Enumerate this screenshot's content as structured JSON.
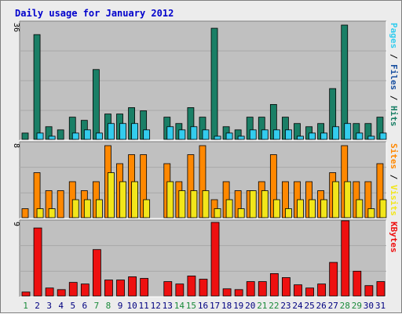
{
  "chart_data": {
    "type": "bar",
    "title": "Daily usage for January 2012",
    "colors": {
      "pages": "#1a7f66",
      "files": "#33ccee",
      "hits": "#1a7f66",
      "visits": "#f2e61a",
      "sites": "#ff8800",
      "kbytes": "#ee1010",
      "weekend_label": "#1a8a3a",
      "weekday_label": "#000080",
      "title": "#0000cc",
      "plot_bg": "#c0c0c0"
    },
    "days": [
      "1",
      "2",
      "3",
      "4",
      "5",
      "6",
      "7",
      "8",
      "9",
      "10",
      "11",
      "12",
      "13",
      "14",
      "15",
      "16",
      "17",
      "18",
      "19",
      "20",
      "21",
      "22",
      "23",
      "24",
      "25",
      "26",
      "27",
      "28",
      "29",
      "30",
      "31"
    ],
    "weekend_days": [
      1,
      7,
      8,
      14,
      15,
      21,
      22,
      28,
      29
    ],
    "panels": [
      {
        "id": "hits-panel",
        "ymax_label": "36",
        "ymax": 36,
        "legend": [
          {
            "text": "Pages",
            "color": "#33ccee"
          },
          {
            "text": " / ",
            "color": "#000000"
          },
          {
            "text": "Files",
            "color": "#1a50a0"
          },
          {
            "text": " / ",
            "color": "#000000"
          },
          {
            "text": "Hits",
            "color": "#1a7f66"
          }
        ],
        "series": [
          {
            "name": "Hits",
            "color": "#1a7f66",
            "values": [
              2,
              33,
              4,
              3,
              7,
              6,
              22,
              8,
              8,
              10,
              9,
              0,
              7,
              5,
              10,
              7,
              35,
              4,
              3,
              7,
              7,
              11,
              7,
              5,
              4,
              5,
              16,
              36,
              5,
              5,
              7
            ]
          },
          {
            "name": "Files",
            "color": "#33ccee",
            "values": [
              0,
              2,
              1,
              0,
              2,
              3,
              2,
              5,
              5,
              5,
              3,
              0,
              4,
              3,
              4,
              3,
              1,
              2,
              1,
              3,
              3,
              3,
              3,
              1,
              2,
              2,
              4,
              5,
              2,
              1,
              2
            ]
          },
          {
            "name": "Pages",
            "color": "#1a50a0",
            "values": [
              0,
              0,
              0,
              0,
              0,
              0,
              0,
              0,
              0,
              0,
              0,
              0,
              0,
              0,
              0,
              0,
              0,
              0,
              0,
              0,
              0,
              0,
              0,
              0,
              0,
              0,
              0,
              0,
              0,
              0,
              0
            ]
          }
        ]
      },
      {
        "id": "visits-panel",
        "ymax_label": "8",
        "ymax": 8,
        "legend": [
          {
            "text": "Sites",
            "color": "#ff8800"
          },
          {
            "text": " / ",
            "color": "#000000"
          },
          {
            "text": "Visits",
            "color": "#f2e61a"
          }
        ],
        "series": [
          {
            "name": "Sites",
            "color": "#ff8800",
            "values": [
              1,
              5,
              3,
              3,
              4,
              3,
              4,
              8,
              6,
              7,
              7,
              0,
              6,
              4,
              7,
              8,
              2,
              4,
              3,
              3,
              4,
              7,
              4,
              4,
              4,
              3,
              5,
              8,
              4,
              4,
              6
            ]
          },
          {
            "name": "Visits",
            "color": "#f2e61a",
            "values": [
              0,
              1,
              1,
              0,
              2,
              2,
              2,
              5,
              4,
              4,
              2,
              0,
              4,
              3,
              3,
              3,
              1,
              2,
              1,
              3,
              3,
              2,
              1,
              2,
              2,
              2,
              4,
              4,
              2,
              1,
              2
            ]
          }
        ]
      },
      {
        "id": "kbytes-panel",
        "ymax_label": "9",
        "ymax": 9,
        "legend": [
          {
            "text": "KBytes",
            "color": "#ee1010"
          }
        ],
        "series": [
          {
            "name": "KBytes",
            "color": "#ee1010",
            "values": [
              0.5,
              8.5,
              1.0,
              0.8,
              1.7,
              1.5,
              5.8,
              2.0,
              2.0,
              2.4,
              2.2,
              0,
              1.8,
              1.5,
              2.5,
              2.1,
              9.2,
              0.9,
              0.8,
              1.8,
              1.8,
              2.8,
              2.3,
              1.4,
              1.0,
              1.5,
              4.2,
              9.4,
              3.1,
              1.3,
              1.8
            ]
          }
        ]
      }
    ]
  }
}
